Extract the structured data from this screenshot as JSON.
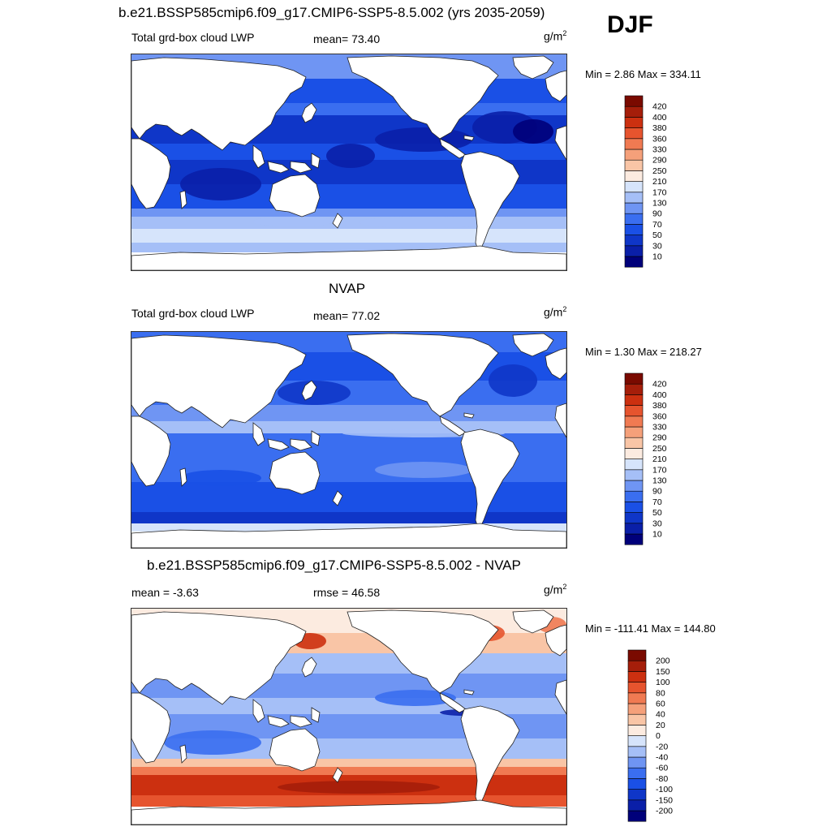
{
  "season": "DJF",
  "panels": [
    {
      "title": "b.e21.BSSP585cmip6.f09_g17.CMIP6-SSP5-8.5.002 (yrs 2035-2059)",
      "left_label": "Total grd-box cloud LWP",
      "stat_label": "mean=  73.40",
      "units": "g/m",
      "units_sup": "2",
      "minmax": "Min =   2.86 Max = 334.11",
      "scale": "lwp"
    },
    {
      "title": "NVAP",
      "left_label": "Total grd-box cloud LWP",
      "stat_label": "mean=  77.02",
      "units": "g/m",
      "units_sup": "2",
      "minmax": "Min =   1.30 Max = 218.27",
      "scale": "lwp"
    },
    {
      "title": "b.e21.BSSP585cmip6.f09_g17.CMIP6-SSP5-8.5.002 - NVAP",
      "left_label": "mean =  -3.63",
      "stat_label": "rmse =  46.58",
      "units": "g/m",
      "units_sup": "2",
      "minmax": "Min = -111.41 Max = 144.80",
      "scale": "diff"
    }
  ],
  "chart_data": [
    {
      "type": "heatmap",
      "title": "b.e21.BSSP585cmip6.f09_g17.CMIP6-SSP5-8.5.002 (yrs 2035-2059)",
      "field": "Total grd-box cloud LWP",
      "units": "g/m2",
      "mean": 73.4,
      "min": 2.86,
      "max": 334.11,
      "colorbar_levels": [
        10,
        30,
        50,
        70,
        90,
        130,
        170,
        210,
        250,
        290,
        330,
        360,
        380,
        400,
        420
      ],
      "colorbar_colors": [
        "#00007a",
        "#0a1fa8",
        "#0f36c8",
        "#1a50e6",
        "#3a6ef0",
        "#6f95f3",
        "#a5bff7",
        "#d6e4fb",
        "#fcebe0",
        "#f9c5a6",
        "#f5a07a",
        "#f07a52",
        "#e6542e",
        "#cc3010",
        "#a51e0a",
        "#7a0a00"
      ]
    },
    {
      "type": "heatmap",
      "title": "NVAP",
      "field": "Total grd-box cloud LWP",
      "units": "g/m2",
      "mean": 77.02,
      "min": 1.3,
      "max": 218.27,
      "colorbar_levels": [
        10,
        30,
        50,
        70,
        90,
        130,
        170,
        210,
        250,
        290,
        330,
        360,
        380,
        400,
        420
      ],
      "colorbar_colors": [
        "#00007a",
        "#0a1fa8",
        "#0f36c8",
        "#1a50e6",
        "#3a6ef0",
        "#6f95f3",
        "#a5bff7",
        "#d6e4fb",
        "#fcebe0",
        "#f9c5a6",
        "#f5a07a",
        "#f07a52",
        "#e6542e",
        "#cc3010",
        "#a51e0a",
        "#7a0a00"
      ]
    },
    {
      "type": "heatmap",
      "title": "b.e21.BSSP585cmip6.f09_g17.CMIP6-SSP5-8.5.002 - NVAP",
      "units": "g/m2",
      "mean": -3.63,
      "rmse": 46.58,
      "min": -111.41,
      "max": 144.8,
      "colorbar_levels": [
        -200,
        -150,
        -100,
        -80,
        -60,
        -40,
        -20,
        0,
        20,
        40,
        60,
        80,
        100,
        150,
        200
      ],
      "colorbar_colors": [
        "#00007a",
        "#0a1fa8",
        "#0f36c8",
        "#1a50e6",
        "#3a6ef0",
        "#6f95f3",
        "#a5bff7",
        "#d6e4fb",
        "#fcebe0",
        "#f9c5a6",
        "#f5a07a",
        "#f07a52",
        "#e6542e",
        "#cc3010",
        "#a51e0a",
        "#7a0a00"
      ]
    }
  ]
}
